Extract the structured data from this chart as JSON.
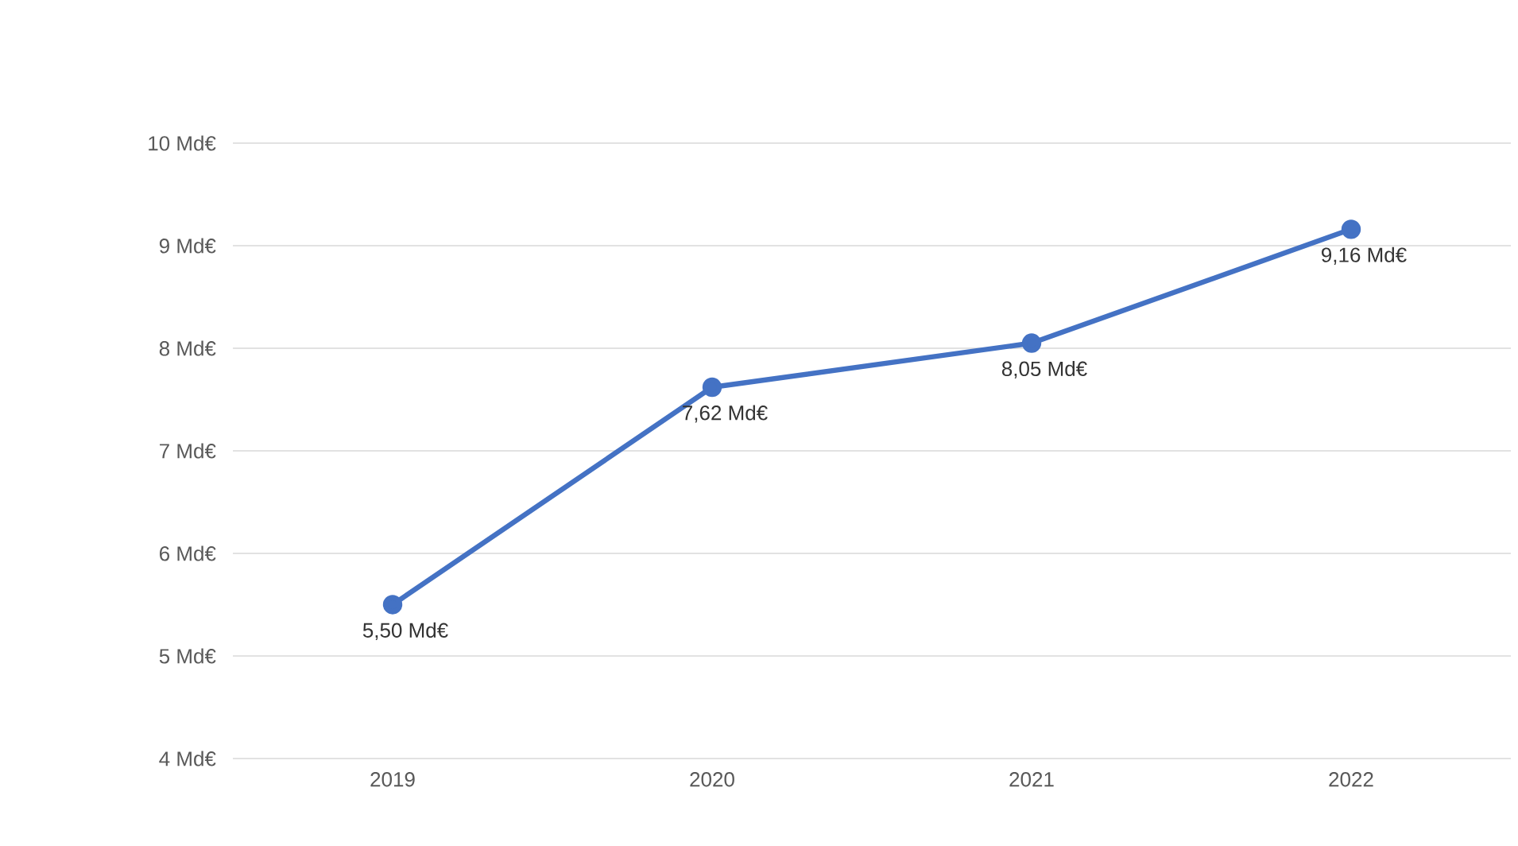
{
  "chart_data": {
    "type": "line",
    "categories": [
      "2019",
      "2020",
      "2021",
      "2022"
    ],
    "series": [
      {
        "color": "#4472c4",
        "values": [
          5.5,
          7.62,
          8.05,
          9.16
        ],
        "value_labels": [
          "5,50  Md€",
          "7,62  Md€",
          "8,05  Md€",
          "9,16  Md€"
        ]
      }
    ],
    "ylim": [
      4,
      10
    ],
    "yticks": [
      {
        "value": 4,
        "label": "4  Md€"
      },
      {
        "value": 5,
        "label": "5  Md€"
      },
      {
        "value": 6,
        "label": "6  Md€"
      },
      {
        "value": 7,
        "label": "7  Md€"
      },
      {
        "value": 8,
        "label": "8  Md€"
      },
      {
        "value": 9,
        "label": "9  Md€"
      },
      {
        "value": 10,
        "label": "10  Md€"
      }
    ],
    "grid": "y",
    "marker": "circle",
    "line_style": "solid"
  }
}
